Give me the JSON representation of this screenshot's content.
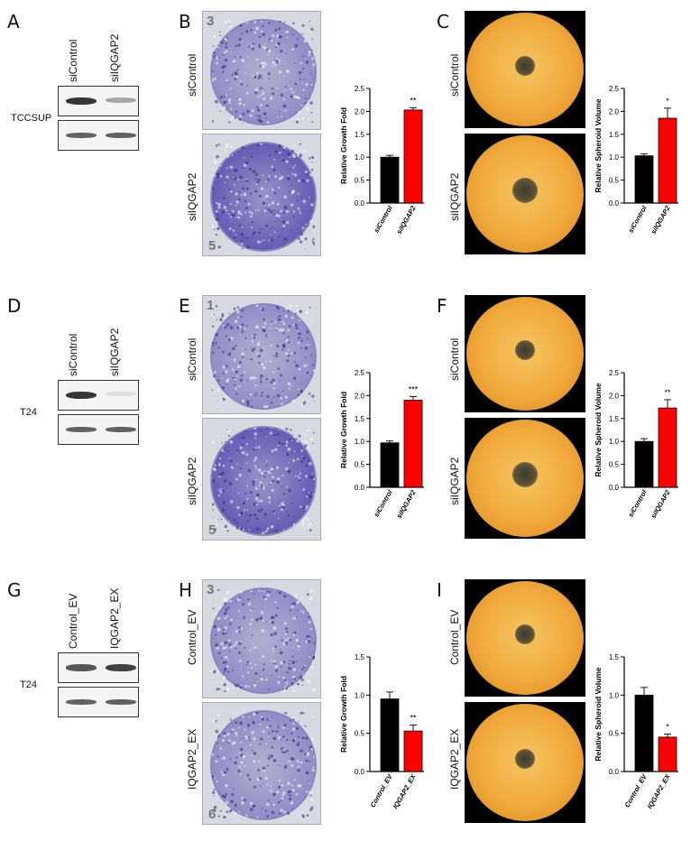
{
  "rows": [
    {
      "panels": {
        "blot": "A",
        "colony": "B",
        "spheroid": "C"
      },
      "cell_line": "TCCSUP",
      "conditions": [
        "siControl",
        "siIQGAP2"
      ],
      "plate_numbers": [
        "3",
        "5"
      ],
      "band_intensity": [
        0.85,
        0.35
      ]
    },
    {
      "panels": {
        "blot": "D",
        "colony": "E",
        "spheroid": "F"
      },
      "cell_line": "T24",
      "conditions": [
        "siControl",
        "siIQGAP2"
      ],
      "plate_numbers": [
        "1",
        "5"
      ],
      "band_intensity": [
        0.85,
        0.1
      ]
    },
    {
      "panels": {
        "blot": "G",
        "colony": "H",
        "spheroid": "I"
      },
      "cell_line": "T24",
      "conditions": [
        "Control_EV",
        "IQGAP2_EX"
      ],
      "plate_numbers": [
        "3",
        "6"
      ],
      "band_intensity": [
        0.7,
        0.8
      ]
    }
  ],
  "colors": {
    "control_bar": "#000000",
    "treated_bar": "#ff0000",
    "stain": "#5a4fb0",
    "spheroid_bg": "#f0a93c"
  },
  "chart_data": [
    {
      "type": "bar",
      "panel": "B",
      "ylabel": "Relative Growth Fold",
      "categories": [
        "siControl",
        "siIQGAP2"
      ],
      "values": [
        1.0,
        2.03
      ],
      "errors": [
        0.04,
        0.05
      ],
      "significance": "**",
      "ylim": [
        0,
        2.5
      ],
      "yticks": [
        "0.0",
        "0.5",
        "1.0",
        "1.5",
        "2.0",
        "2.5"
      ]
    },
    {
      "type": "bar",
      "panel": "C",
      "ylabel": "Relative Spheroid Volume",
      "categories": [
        "siControl",
        "siIQGAP2"
      ],
      "values": [
        1.03,
        1.85
      ],
      "errors": [
        0.04,
        0.22
      ],
      "significance": "*",
      "ylim": [
        0,
        2.5
      ],
      "yticks": [
        "0.0",
        "0.5",
        "1.0",
        "1.5",
        "2.0",
        "2.5"
      ]
    },
    {
      "type": "bar",
      "panel": "E",
      "ylabel": "Relative Growth Fold",
      "categories": [
        "siControl",
        "siIQGAP2"
      ],
      "values": [
        0.97,
        1.9
      ],
      "errors": [
        0.04,
        0.08
      ],
      "significance": "***",
      "ylim": [
        0,
        2.5
      ],
      "yticks": [
        "0.0",
        "0.5",
        "1.0",
        "1.5",
        "2.0",
        "2.5"
      ]
    },
    {
      "type": "bar",
      "panel": "F",
      "ylabel": "Relative Spheroid Volume",
      "categories": [
        "siControl",
        "siIQGAP2"
      ],
      "values": [
        1.0,
        1.73
      ],
      "errors": [
        0.06,
        0.18
      ],
      "significance": "**",
      "ylim": [
        0,
        2.5
      ],
      "yticks": [
        "0.0",
        "0.5",
        "1.0",
        "1.5",
        "2.0",
        "2.5"
      ]
    },
    {
      "type": "bar",
      "panel": "H",
      "ylabel": "Relative Growth Fold",
      "categories": [
        "Control_EV",
        "IQGAP2_EX"
      ],
      "values": [
        0.95,
        0.53
      ],
      "errors": [
        0.09,
        0.08
      ],
      "significance": "**",
      "ylim": [
        0,
        1.5
      ],
      "yticks": [
        "0.0",
        "0.5",
        "1.0",
        "1.5"
      ]
    },
    {
      "type": "bar",
      "panel": "I",
      "ylabel": "Relative Spheroid Volume",
      "categories": [
        "Control_EV",
        "IQGAP2_EX"
      ],
      "values": [
        1.0,
        0.45
      ],
      "errors": [
        0.1,
        0.04
      ],
      "significance": "*",
      "ylim": [
        0,
        1.5
      ],
      "yticks": [
        "0.0",
        "0.5",
        "1.0",
        "1.5"
      ]
    }
  ]
}
